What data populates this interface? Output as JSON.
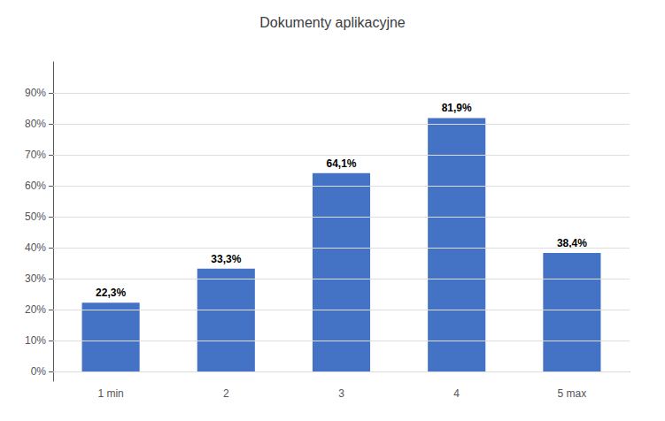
{
  "chart_data": {
    "type": "bar",
    "title": "Dokumenty aplikacyjne",
    "categories": [
      "1 min",
      "2",
      "3",
      "4",
      "5 max"
    ],
    "values": [
      22.3,
      33.3,
      64.1,
      81.9,
      38.4
    ],
    "value_labels": [
      "22,3%",
      "33,3%",
      "64,1%",
      "81,9%",
      "38,4%"
    ],
    "data_labels": true,
    "color": "#4472C4",
    "ylim": [
      -3,
      100
    ],
    "yticks": [
      {
        "value": 0,
        "label": "0%"
      },
      {
        "value": 10,
        "label": "10%"
      },
      {
        "value": 20,
        "label": "20%"
      },
      {
        "value": 30,
        "label": "30%"
      },
      {
        "value": 40,
        "label": "40%"
      },
      {
        "value": 50,
        "label": "50%"
      },
      {
        "value": 60,
        "label": "60%"
      },
      {
        "value": 70,
        "label": "70%"
      },
      {
        "value": 80,
        "label": "80%"
      },
      {
        "value": 90,
        "label": "90%"
      }
    ],
    "grid": true
  }
}
